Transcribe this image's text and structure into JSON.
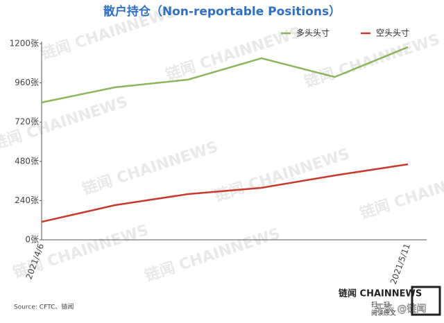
{
  "chart_data": {
    "type": "line",
    "title": "散户持仓（Non-reportable Positions）",
    "categories": [
      "2021/4/6",
      null,
      null,
      null,
      null,
      "2021/5/11"
    ],
    "series": [
      {
        "name": "多头头寸",
        "color": "#8db55a",
        "values": [
          840,
          933,
          980,
          1111,
          996,
          1179
        ]
      },
      {
        "name": "空头头寸",
        "color": "#c8392b",
        "values": [
          110,
          212,
          280,
          318,
          394,
          462
        ]
      }
    ],
    "ylim": [
      0,
      1200
    ],
    "yticks": [
      {
        "value": 0,
        "label": "0张"
      },
      {
        "value": 240,
        "label": "240张"
      },
      {
        "value": 480,
        "label": "480张"
      },
      {
        "value": 720,
        "label": "720张"
      },
      {
        "value": 960,
        "label": "960张"
      },
      {
        "value": 1200,
        "label": "1200张"
      }
    ],
    "grid": false,
    "legend": "top-right",
    "source": "Source: CFTC、链闻",
    "watermark": "链闻 CHAINNEWS",
    "footer": {
      "logo": "链闻 CHAINNEWS",
      "scan": "扫一扫",
      "read": "阅读原文",
      "credit": "头条 @链闻"
    }
  }
}
